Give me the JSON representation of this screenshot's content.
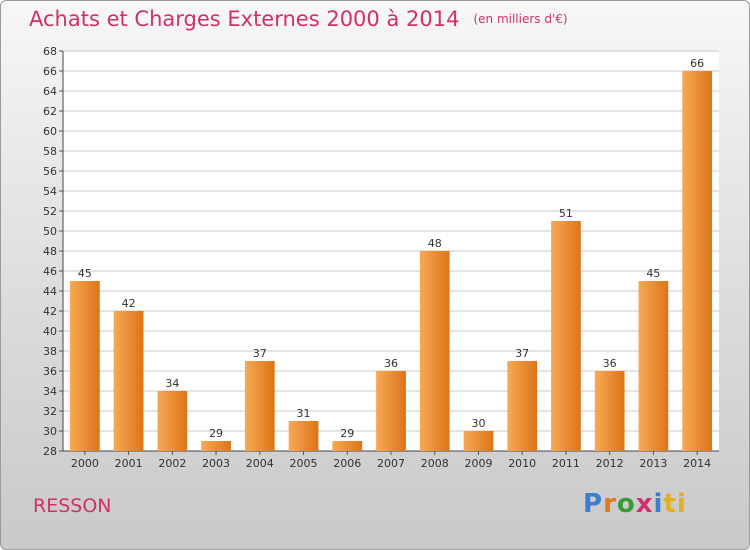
{
  "title": "Achats et Charges Externes 2000 à 2014",
  "unit_note": "(en milliers d'€)",
  "town": "RESSON",
  "logo_letters": [
    "P",
    "r",
    "o",
    "x",
    "i",
    "ti"
  ],
  "colors": {
    "bar_light": "#f7a955",
    "bar_dark": "#dc7418",
    "title": "#d0306a"
  },
  "chart_data": {
    "type": "bar",
    "title": "Achats et Charges Externes 2000 à 2014",
    "categories": [
      "2000",
      "2001",
      "2002",
      "2003",
      "2004",
      "2005",
      "2006",
      "2007",
      "2008",
      "2009",
      "2010",
      "2011",
      "2012",
      "2013",
      "2014"
    ],
    "values": [
      45,
      42,
      34,
      29,
      37,
      31,
      29,
      36,
      48,
      30,
      37,
      51,
      36,
      45,
      66
    ],
    "ylim": [
      28,
      68
    ],
    "yticks": [
      28,
      30,
      32,
      34,
      36,
      38,
      40,
      42,
      44,
      46,
      48,
      50,
      52,
      54,
      56,
      58,
      60,
      62,
      64,
      66,
      68
    ],
    "grid": true,
    "data_labels": true
  }
}
